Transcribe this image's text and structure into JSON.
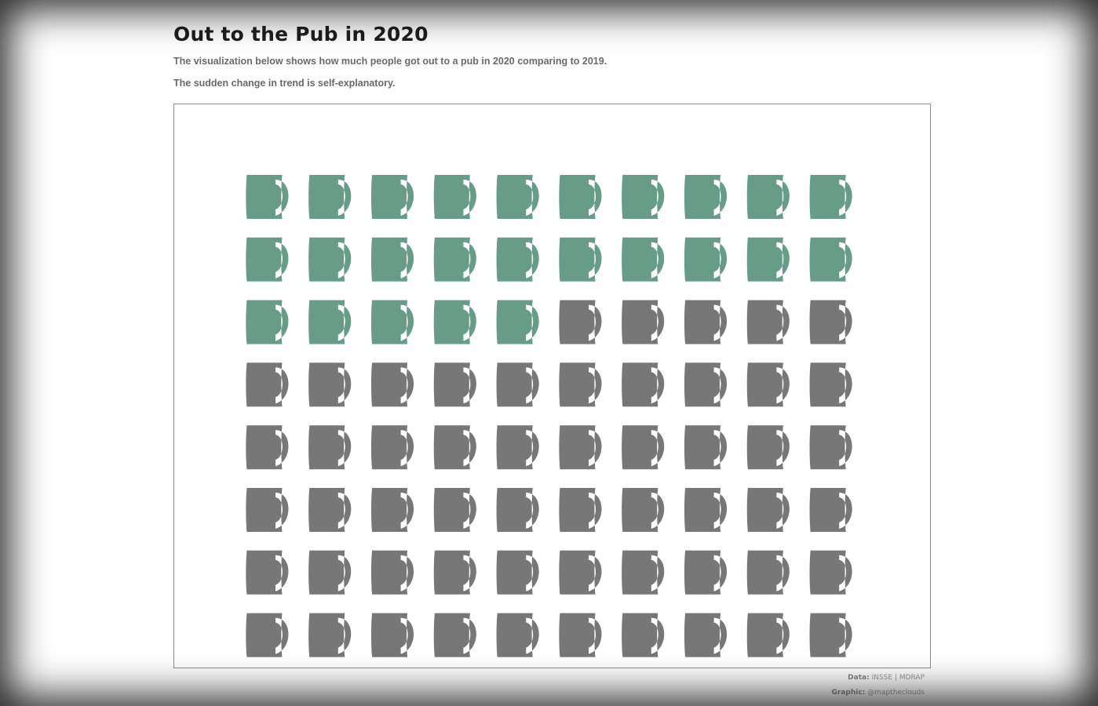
{
  "header": {
    "title": "Out to the Pub in 2020",
    "description_1": "The visualization below shows how much people got out to a pub in 2020 comparing to 2019.",
    "description_2": "The sudden change in trend is self-explanatory."
  },
  "chart_data": {
    "type": "waffle",
    "total_units": 80,
    "highlighted_units": 25,
    "columns": 10,
    "rows": 8,
    "icon": "beer-mug-icon",
    "colors": {
      "highlighted": "#669c88",
      "remaining": "#777777"
    }
  },
  "footer": {
    "data_label": "Data:",
    "data_source": "INSSE | MDRAP",
    "graphic_label": "Graphic:",
    "graphic_author": "@mapthe­clouds"
  }
}
